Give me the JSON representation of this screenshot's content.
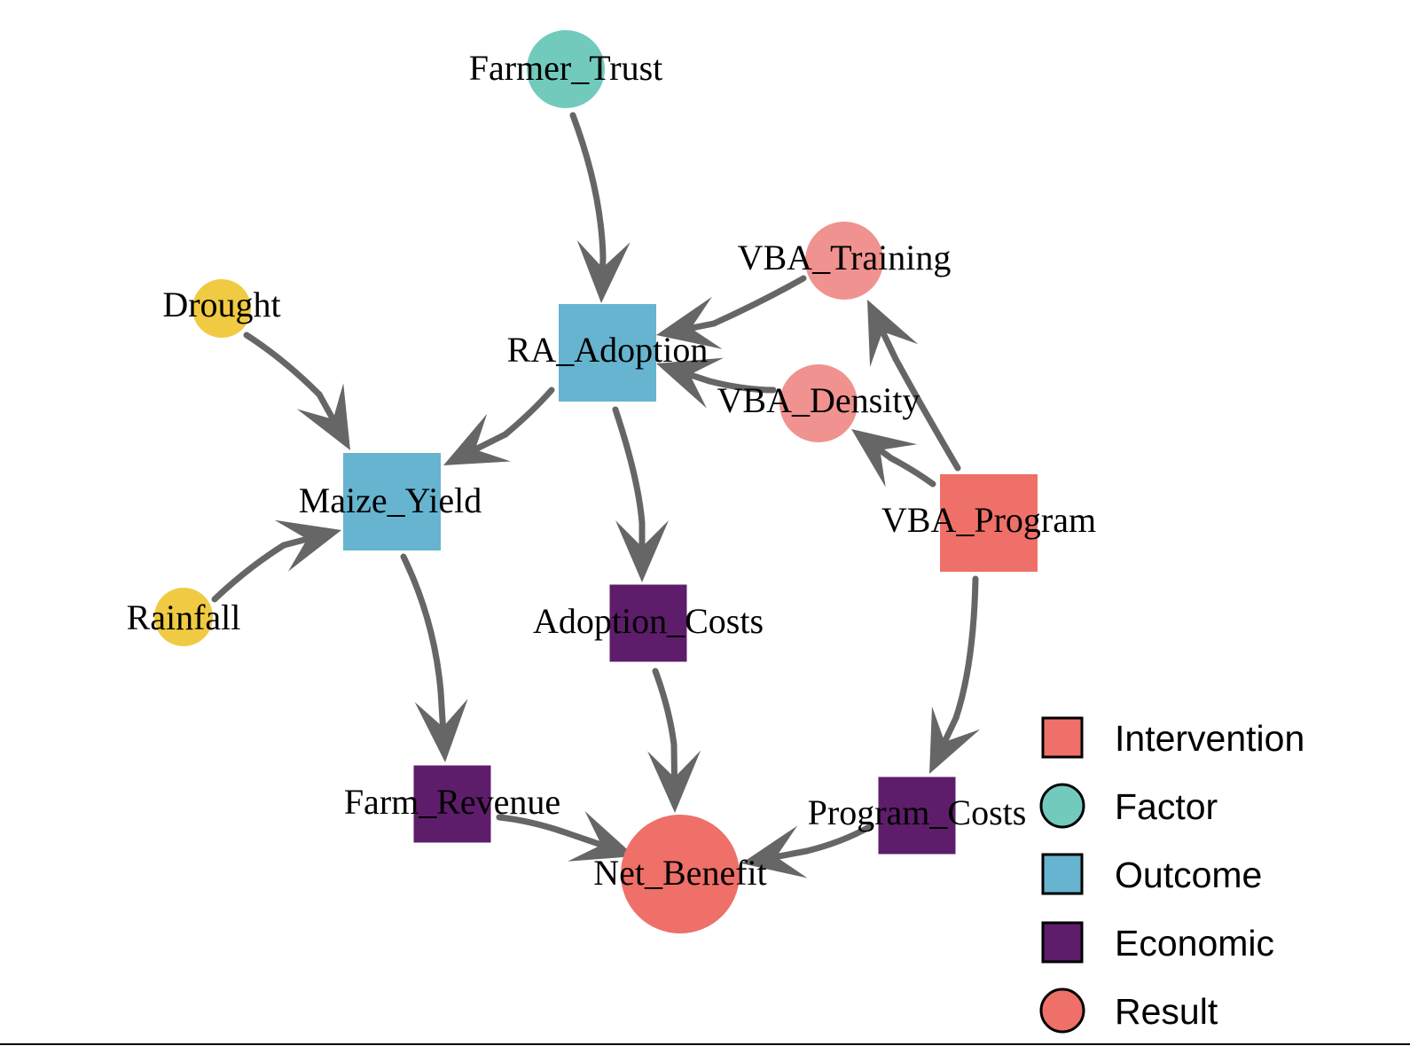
{
  "colors": {
    "intervention": "#EE7068",
    "factor": "#72CABD",
    "outcome": "#66B4CF",
    "economic": "#5E1D6A",
    "result": "#EE7068",
    "factor_yellow": "#F0CA42",
    "result_light": "#F0928F",
    "edge": "#666666"
  },
  "nodes": {
    "farmer_trust": {
      "label": "Farmer_Trust",
      "shape": "circle",
      "category": "factor"
    },
    "vba_training": {
      "label": "VBA_Training",
      "shape": "circle",
      "category": "result_light"
    },
    "drought": {
      "label": "Drought",
      "shape": "circle",
      "category": "factor_yellow"
    },
    "ra_adoption": {
      "label": "RA_Adoption",
      "shape": "square",
      "category": "outcome"
    },
    "vba_density": {
      "label": "VBA_Density",
      "shape": "circle",
      "category": "result_light"
    },
    "maize_yield": {
      "label": "Maize_Yield",
      "shape": "square",
      "category": "outcome"
    },
    "vba_program": {
      "label": "VBA_Program",
      "shape": "square",
      "category": "intervention"
    },
    "rainfall": {
      "label": "Rainfall",
      "shape": "circle",
      "category": "factor_yellow"
    },
    "adoption_costs": {
      "label": "Adoption_Costs",
      "shape": "square",
      "category": "economic"
    },
    "farm_revenue": {
      "label": "Farm_Revenue",
      "shape": "square",
      "category": "economic"
    },
    "program_costs": {
      "label": "Program_Costs",
      "shape": "square",
      "category": "economic"
    },
    "net_benefit": {
      "label": "Net_Benefit",
      "shape": "circle",
      "category": "result"
    }
  },
  "edges": [
    {
      "from": "farmer_trust",
      "to": "ra_adoption"
    },
    {
      "from": "vba_training",
      "to": "ra_adoption"
    },
    {
      "from": "vba_density",
      "to": "ra_adoption"
    },
    {
      "from": "drought",
      "to": "maize_yield"
    },
    {
      "from": "ra_adoption",
      "to": "maize_yield"
    },
    {
      "from": "rainfall",
      "to": "maize_yield"
    },
    {
      "from": "ra_adoption",
      "to": "adoption_costs"
    },
    {
      "from": "vba_program",
      "to": "vba_training"
    },
    {
      "from": "vba_program",
      "to": "vba_density"
    },
    {
      "from": "vba_program",
      "to": "program_costs"
    },
    {
      "from": "maize_yield",
      "to": "farm_revenue"
    },
    {
      "from": "adoption_costs",
      "to": "net_benefit"
    },
    {
      "from": "farm_revenue",
      "to": "net_benefit"
    },
    {
      "from": "program_costs",
      "to": "net_benefit"
    }
  ],
  "legend": [
    {
      "label": "Intervention",
      "shape": "square",
      "category": "intervention"
    },
    {
      "label": "Factor",
      "shape": "circle",
      "category": "factor"
    },
    {
      "label": "Outcome",
      "shape": "square",
      "category": "outcome"
    },
    {
      "label": "Economic",
      "shape": "square",
      "category": "economic"
    },
    {
      "label": "Result",
      "shape": "circle",
      "category": "result"
    }
  ]
}
